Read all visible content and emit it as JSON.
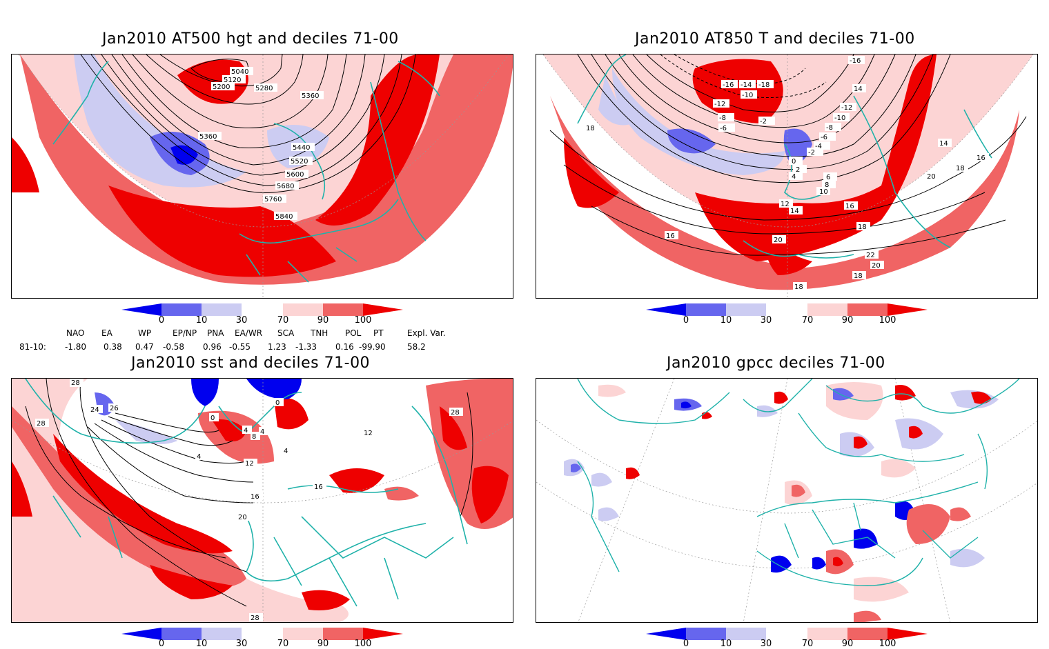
{
  "panels": [
    {
      "id": "p1",
      "title": "Jan2010 AT500 hgt and deciles 71-00",
      "contour_labels": [
        "5040",
        "5120",
        "5200",
        "5280",
        "5360",
        "5360",
        "5440",
        "5520",
        "5600",
        "5680",
        "5760",
        "5840"
      ]
    },
    {
      "id": "p2",
      "title": "Jan2010 AT850 T and deciles 71-00",
      "contour_labels": [
        "-16",
        "-14",
        "-18",
        "-10",
        "-12",
        "-8",
        "-6",
        "-2",
        "-2",
        "0",
        "2",
        "4",
        "-12",
        "-10",
        "-8",
        "-6",
        "-4",
        "14",
        "18",
        "14",
        "16",
        "18",
        "20",
        "16",
        "12",
        "14",
        "10",
        "8",
        "6",
        "16",
        "18",
        "-16",
        "20",
        "22",
        "20",
        "18",
        "18"
      ]
    },
    {
      "id": "p3",
      "title": "Jan2010 sst and deciles 71-00",
      "contour_labels": [
        "28",
        "24",
        "26",
        "28",
        "0",
        "0",
        "4",
        "8",
        "4",
        "4",
        "12",
        "16",
        "20",
        "16",
        "28",
        "4",
        "12",
        "28"
      ]
    },
    {
      "id": "p4",
      "title": "Jan2010 gpcc deciles 71-00",
      "contour_labels": []
    }
  ],
  "colorbar": {
    "labels": [
      "0",
      "10",
      "30",
      "70",
      "90",
      "100"
    ],
    "colors": {
      "dark_blue": "#0000ee",
      "blue": "#6666ee",
      "light_blue": "#ccccf2",
      "light_red": "#fcd4d4",
      "red": "#f06464",
      "dark_red": "#ee0000"
    }
  },
  "indices": {
    "headers": [
      "NAO",
      "EA",
      "WP",
      "EP/NP",
      "PNA",
      "EA/WR",
      "SCA",
      "TNH",
      "POL",
      "PT",
      "Expl. Var."
    ],
    "row_label": "81-10:",
    "values": [
      "-1.80",
      "0.38",
      "0.47",
      "-0.58",
      "0.96",
      "-0.55",
      "1.23",
      "-1.33",
      "0.16",
      "-99.90",
      "58.2"
    ]
  },
  "colors": {
    "coast": "#20b2aa",
    "grid": "#999999",
    "contour": "#000000"
  }
}
